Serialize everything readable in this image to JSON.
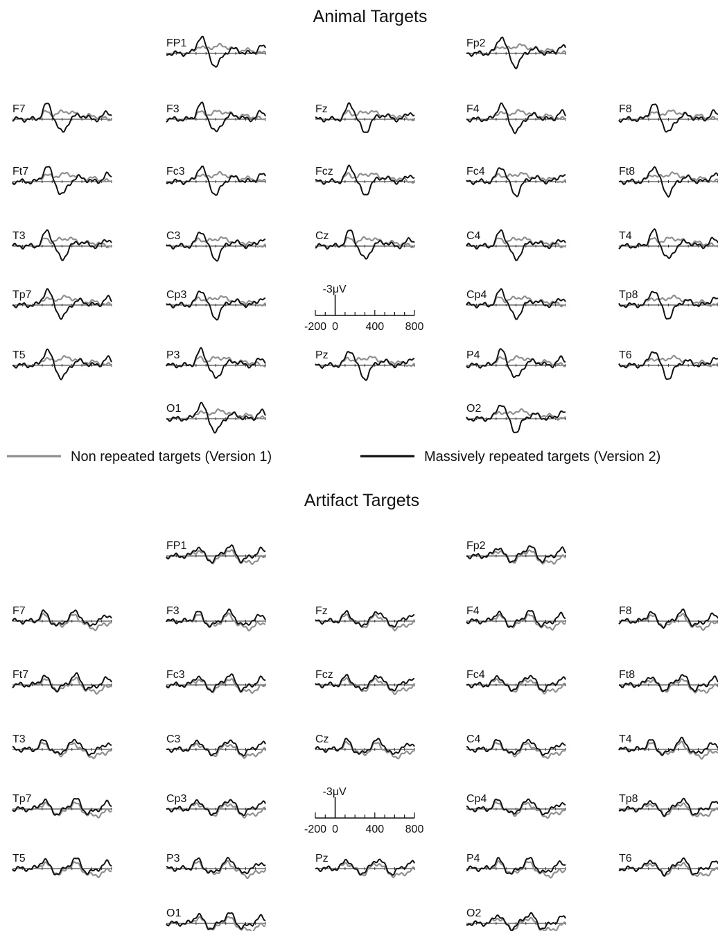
{
  "legend": {
    "nonrepeated": "Non repeated targets (Version 1)",
    "repeated": "Massively repeated targets (Version 2)",
    "nonrepeated_color": "#8f8f8f",
    "repeated_color": "#111111"
  },
  "chart_data": [
    {
      "type": "line",
      "title": "Animal Targets",
      "scale": {
        "amplitude_label": "-3μV",
        "tick_labels": [
          "-200",
          "0",
          "400",
          "800"
        ]
      },
      "x_range_ms": [
        -200,
        800
      ],
      "y_polarity": "negative up",
      "channels": [
        {
          "label": "FP1",
          "row": 0,
          "col": 1
        },
        {
          "label": "Fp2",
          "row": 0,
          "col": 3
        },
        {
          "label": "F7",
          "row": 1,
          "col": 0
        },
        {
          "label": "F3",
          "row": 1,
          "col": 1
        },
        {
          "label": "Fz",
          "row": 1,
          "col": 2
        },
        {
          "label": "F4",
          "row": 1,
          "col": 3
        },
        {
          "label": "F8",
          "row": 1,
          "col": 4
        },
        {
          "label": "Ft7",
          "row": 2,
          "col": 0
        },
        {
          "label": "Fc3",
          "row": 2,
          "col": 1
        },
        {
          "label": "Fcz",
          "row": 2,
          "col": 2
        },
        {
          "label": "Fc4",
          "row": 2,
          "col": 3
        },
        {
          "label": "Ft8",
          "row": 2,
          "col": 4
        },
        {
          "label": "T3",
          "row": 3,
          "col": 0
        },
        {
          "label": "C3",
          "row": 3,
          "col": 1
        },
        {
          "label": "Cz",
          "row": 3,
          "col": 2
        },
        {
          "label": "C4",
          "row": 3,
          "col": 3
        },
        {
          "label": "T4",
          "row": 3,
          "col": 4
        },
        {
          "label": "Tp7",
          "row": 4,
          "col": 0
        },
        {
          "label": "Cp3",
          "row": 4,
          "col": 1
        },
        {
          "label": "Cp4",
          "row": 4,
          "col": 3
        },
        {
          "label": "Tp8",
          "row": 4,
          "col": 4
        },
        {
          "label": "T5",
          "row": 5,
          "col": 0
        },
        {
          "label": "P3",
          "row": 5,
          "col": 1
        },
        {
          "label": "Pz",
          "row": 5,
          "col": 2
        },
        {
          "label": "P4",
          "row": 5,
          "col": 3
        },
        {
          "label": "T6",
          "row": 5,
          "col": 4
        },
        {
          "label": "O1",
          "row": 6,
          "col": 1
        },
        {
          "label": "O2",
          "row": 6,
          "col": 3
        }
      ]
    },
    {
      "type": "line",
      "title": "Artifact Targets",
      "scale": {
        "amplitude_label": "-3μV",
        "tick_labels": [
          "-200",
          "0",
          "400",
          "800"
        ]
      },
      "x_range_ms": [
        -200,
        800
      ],
      "y_polarity": "negative up",
      "channels": [
        {
          "label": "FP1",
          "row": 0,
          "col": 1
        },
        {
          "label": "Fp2",
          "row": 0,
          "col": 3
        },
        {
          "label": "F7",
          "row": 1,
          "col": 0
        },
        {
          "label": "F3",
          "row": 1,
          "col": 1
        },
        {
          "label": "Fz",
          "row": 1,
          "col": 2
        },
        {
          "label": "F4",
          "row": 1,
          "col": 3
        },
        {
          "label": "F8",
          "row": 1,
          "col": 4
        },
        {
          "label": "Ft7",
          "row": 2,
          "col": 0
        },
        {
          "label": "Fc3",
          "row": 2,
          "col": 1
        },
        {
          "label": "Fcz",
          "row": 2,
          "col": 2
        },
        {
          "label": "Fc4",
          "row": 2,
          "col": 3
        },
        {
          "label": "Ft8",
          "row": 2,
          "col": 4
        },
        {
          "label": "T3",
          "row": 3,
          "col": 0
        },
        {
          "label": "C3",
          "row": 3,
          "col": 1
        },
        {
          "label": "Cz",
          "row": 3,
          "col": 2
        },
        {
          "label": "C4",
          "row": 3,
          "col": 3
        },
        {
          "label": "T4",
          "row": 3,
          "col": 4
        },
        {
          "label": "Tp7",
          "row": 4,
          "col": 0
        },
        {
          "label": "Cp3",
          "row": 4,
          "col": 1
        },
        {
          "label": "Cp4",
          "row": 4,
          "col": 3
        },
        {
          "label": "Tp8",
          "row": 4,
          "col": 4
        },
        {
          "label": "T5",
          "row": 5,
          "col": 0
        },
        {
          "label": "P3",
          "row": 5,
          "col": 1
        },
        {
          "label": "Pz",
          "row": 5,
          "col": 2
        },
        {
          "label": "P4",
          "row": 5,
          "col": 3
        },
        {
          "label": "T6",
          "row": 5,
          "col": 4
        },
        {
          "label": "O1",
          "row": 6,
          "col": 1
        },
        {
          "label": "O2",
          "row": 6,
          "col": 3
        }
      ]
    }
  ]
}
